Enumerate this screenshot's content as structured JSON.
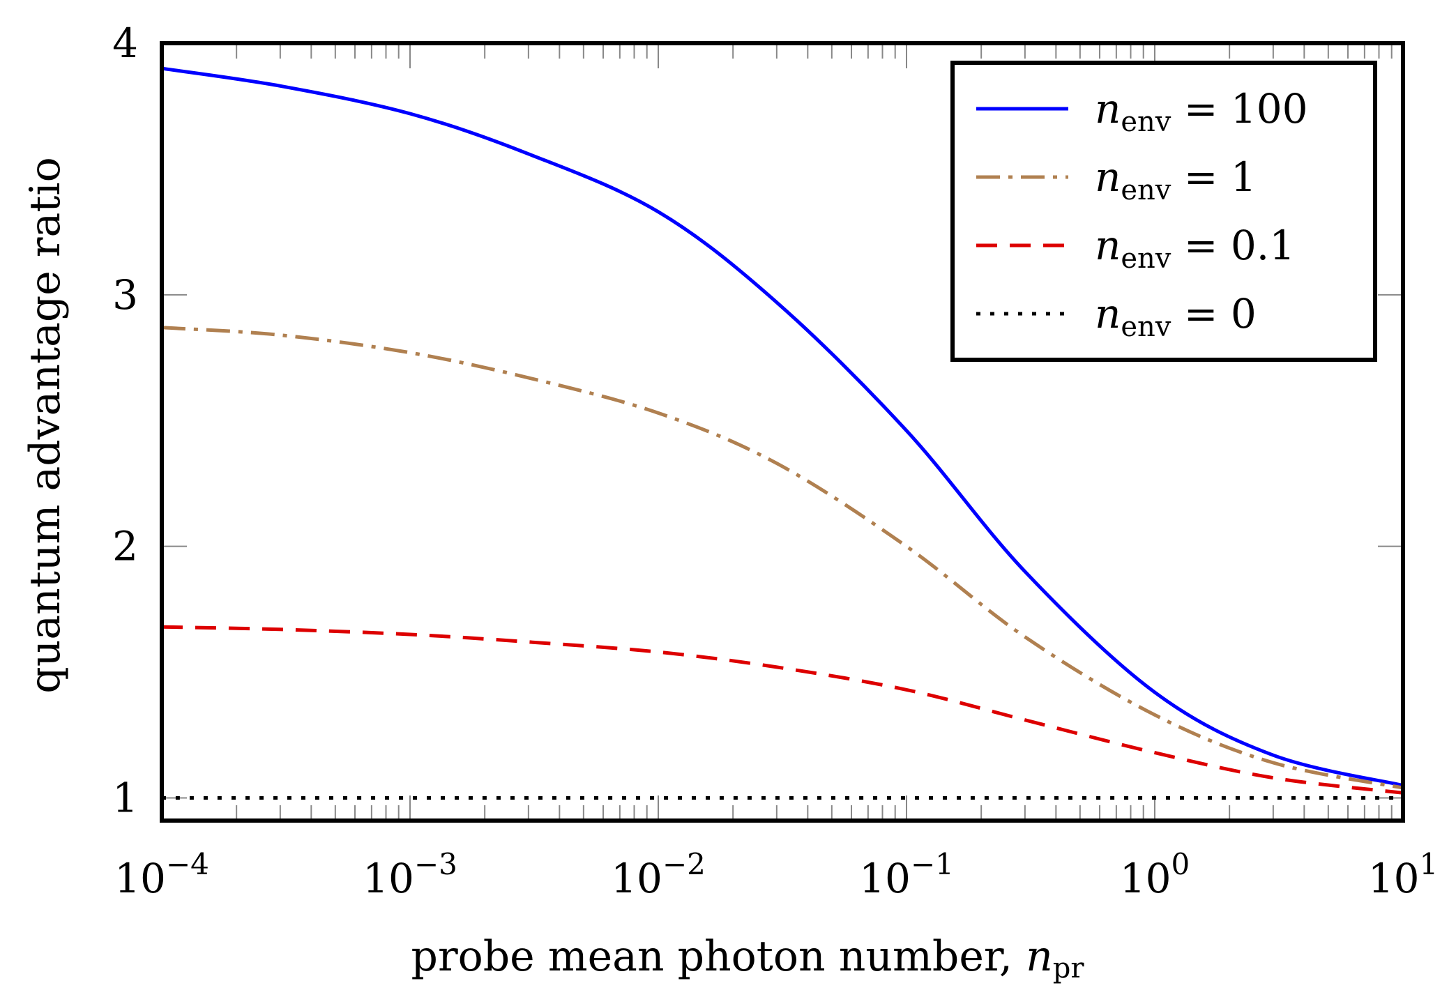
{
  "chart_data": {
    "type": "line",
    "title": "",
    "xlabel": {
      "text": "probe mean photon number, ",
      "var": "n",
      "sub": "pr"
    },
    "ylabel": "quantum advantage ratio",
    "xscale": "log",
    "xlim": [
      0.0001,
      10
    ],
    "ylim": [
      0.91,
      4.0
    ],
    "grid": false,
    "legend_position": "top-right",
    "x_ticks": [
      {
        "value": 0.0001,
        "base": "10",
        "exp": "−4"
      },
      {
        "value": 0.001,
        "base": "10",
        "exp": "−3"
      },
      {
        "value": 0.01,
        "base": "10",
        "exp": "−2"
      },
      {
        "value": 0.1,
        "base": "10",
        "exp": "−1"
      },
      {
        "value": 1,
        "base": "10",
        "exp": "0"
      },
      {
        "value": 10,
        "base": "10",
        "exp": "1"
      }
    ],
    "y_ticks": [
      {
        "value": 1,
        "label": "1"
      },
      {
        "value": 2,
        "label": "2"
      },
      {
        "value": 3,
        "label": "3"
      },
      {
        "value": 4,
        "label": "4"
      }
    ],
    "x": [
      0.0001,
      0.0003,
      0.001,
      0.003,
      0.01,
      0.03,
      0.1,
      0.3,
      1,
      3,
      10
    ],
    "series": [
      {
        "name": "n_env = 100",
        "legend": {
          "var": "n",
          "sub": "env",
          "rest": " = 100"
        },
        "color": "#0000ff",
        "dash": "solid",
        "values": [
          3.9,
          3.83,
          3.72,
          3.56,
          3.33,
          2.97,
          2.46,
          1.9,
          1.42,
          1.17,
          1.05
        ]
      },
      {
        "name": "n_env = 1",
        "legend": {
          "var": "n",
          "sub": "env",
          "rest": " = 1"
        },
        "color": "#b08050",
        "dash": "dashdot",
        "values": [
          2.87,
          2.84,
          2.77,
          2.67,
          2.53,
          2.33,
          2.0,
          1.64,
          1.33,
          1.14,
          1.04
        ]
      },
      {
        "name": "n_env = 0.1",
        "legend": {
          "var": "n",
          "sub": "env",
          "rest": " = 0.1"
        },
        "color": "#dd0000",
        "dash": "dashed",
        "values": [
          1.68,
          1.67,
          1.65,
          1.62,
          1.58,
          1.52,
          1.43,
          1.31,
          1.18,
          1.08,
          1.02
        ]
      },
      {
        "name": "n_env = 0",
        "legend": {
          "var": "n",
          "sub": "env",
          "rest": " = 0"
        },
        "color": "#000000",
        "dash": "dotted",
        "values": [
          1.0,
          1.0,
          1.0,
          1.0,
          1.0,
          1.0,
          1.0,
          1.0,
          1.0,
          1.0,
          1.0
        ]
      }
    ]
  }
}
